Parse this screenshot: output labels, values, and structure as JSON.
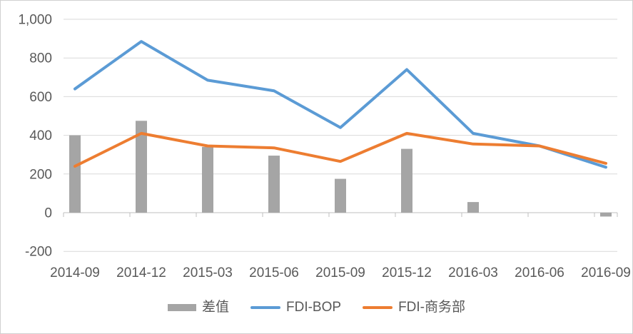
{
  "chart_data": {
    "type": "combo",
    "title": "",
    "categories": [
      "2014-09",
      "2014-12",
      "2015-03",
      "2015-06",
      "2015-09",
      "2015-12",
      "2016-03",
      "2016-06",
      "2016-09"
    ],
    "series": [
      {
        "name": "差值",
        "type": "bar",
        "color": "#A5A5A5",
        "values": [
          400,
          475,
          340,
          295,
          175,
          330,
          55,
          0,
          -20
        ]
      },
      {
        "name": "FDI-BOP",
        "type": "line",
        "color": "#5B9BD5",
        "values": [
          640,
          885,
          685,
          630,
          440,
          740,
          410,
          345,
          235
        ]
      },
      {
        "name": "FDI-商务部",
        "type": "line",
        "color": "#ED7D31",
        "values": [
          240,
          410,
          345,
          335,
          265,
          410,
          355,
          345,
          255
        ]
      }
    ],
    "ylim": [
      -200,
      1000
    ],
    "ytick_step": 200,
    "ytick_labels": [
      "-200",
      "0",
      "200",
      "400",
      "600",
      "800",
      "1,000"
    ],
    "grid": true,
    "legend_position": "bottom"
  },
  "style": {
    "grid_color": "#D9D9D9",
    "axis_color": "#BFBFBF",
    "tick_color": "#BFBFBF",
    "text_color": "#595959",
    "border_color": "#D0D0D0",
    "background": "#FFFFFF"
  }
}
